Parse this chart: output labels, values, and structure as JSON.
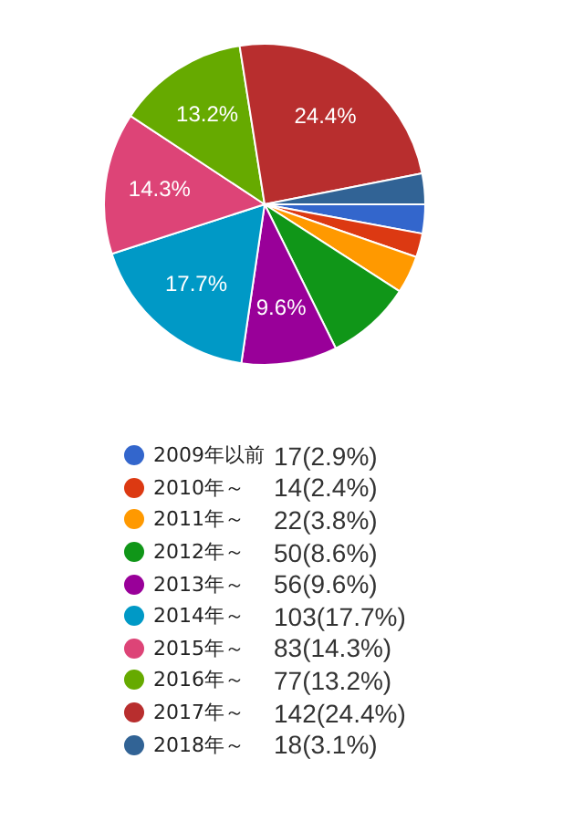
{
  "chart_data": {
    "type": "pie",
    "categories": [
      "2009年以前",
      "2010年～",
      "2011年～",
      "2012年～",
      "2013年～",
      "2014年～",
      "2015年～",
      "2016年～",
      "2017年～",
      "2018年～"
    ],
    "values": [
      17,
      14,
      22,
      50,
      56,
      103,
      83,
      77,
      142,
      18
    ],
    "value_labels": [
      "17(2.9%)",
      "14(2.4%)",
      "22(3.8%)",
      "50(8.6%)",
      "56(9.6%)",
      "103(17.7%)",
      "83(14.3%)",
      "77(13.2%)",
      "142(24.4%)",
      "18(3.1%)"
    ],
    "colors": [
      "#3366cc",
      "#dc3912",
      "#ff9900",
      "#109618",
      "#990099",
      "#0099c6",
      "#dd4477",
      "#66aa00",
      "#b82e2e",
      "#316395"
    ],
    "annotations": [
      {
        "text": "9.6%",
        "x": "2013年～"
      },
      {
        "text": "17.7%",
        "x": "2014年～"
      },
      {
        "text": "14.3%",
        "x": "2015年～"
      },
      {
        "text": "13.2%",
        "x": "2016年～"
      },
      {
        "text": "24.4%",
        "x": "2017年～"
      }
    ],
    "legend": "bottom"
  }
}
